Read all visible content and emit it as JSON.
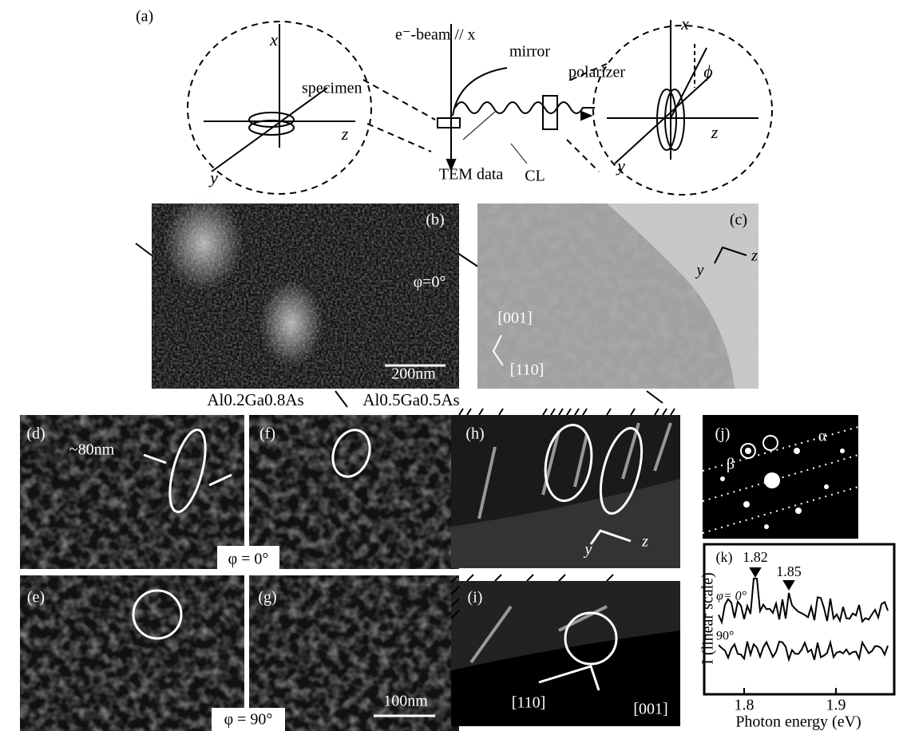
{
  "panel_a": {
    "label": "(a)",
    "beam": "e⁻-beam // x",
    "mirror": "mirror",
    "polarizer": "polarizer",
    "specimen": "specimen",
    "tem_data": "TEM data",
    "cl": "CL",
    "left_axes": [
      "x",
      "y",
      "z"
    ],
    "right_axes": [
      "x",
      "y",
      "z"
    ],
    "angle": "ϕ"
  },
  "panel_b": {
    "label": "(b)",
    "angle": "φ=0°",
    "scale": "200nm",
    "layer_left": "Al0.2Ga0.8As",
    "layer_right": "Al0.5Ga0.5As"
  },
  "panel_c": {
    "label": "(c)",
    "axes": [
      "y",
      "z"
    ],
    "directions": [
      "[001]",
      "[110]"
    ]
  },
  "panel_d": {
    "label": "(d)",
    "size": "~80nm"
  },
  "panel_e": {
    "label": "(e)"
  },
  "panel_f": {
    "label": "(f)",
    "angle": "φ = 0°"
  },
  "panel_g": {
    "label": "(g)",
    "angle": "φ = 90°",
    "scale": "100nm"
  },
  "panel_h": {
    "label": "(h)",
    "axes": [
      "y",
      "z"
    ]
  },
  "panel_i": {
    "label": "(i)",
    "directions": [
      "[110]",
      "[001]"
    ]
  },
  "panel_j": {
    "label": "(j)",
    "spots": [
      "α",
      "β"
    ]
  },
  "panel_k": {
    "label": "(k)",
    "peaks": [
      "1.82",
      "1.85"
    ],
    "curves": [
      "φ= 0°",
      "90°"
    ],
    "y_label": "I (linear scale)",
    "x_label": "Photon energy (eV)",
    "x_ticks": [
      "1.8",
      "1.9"
    ]
  }
}
